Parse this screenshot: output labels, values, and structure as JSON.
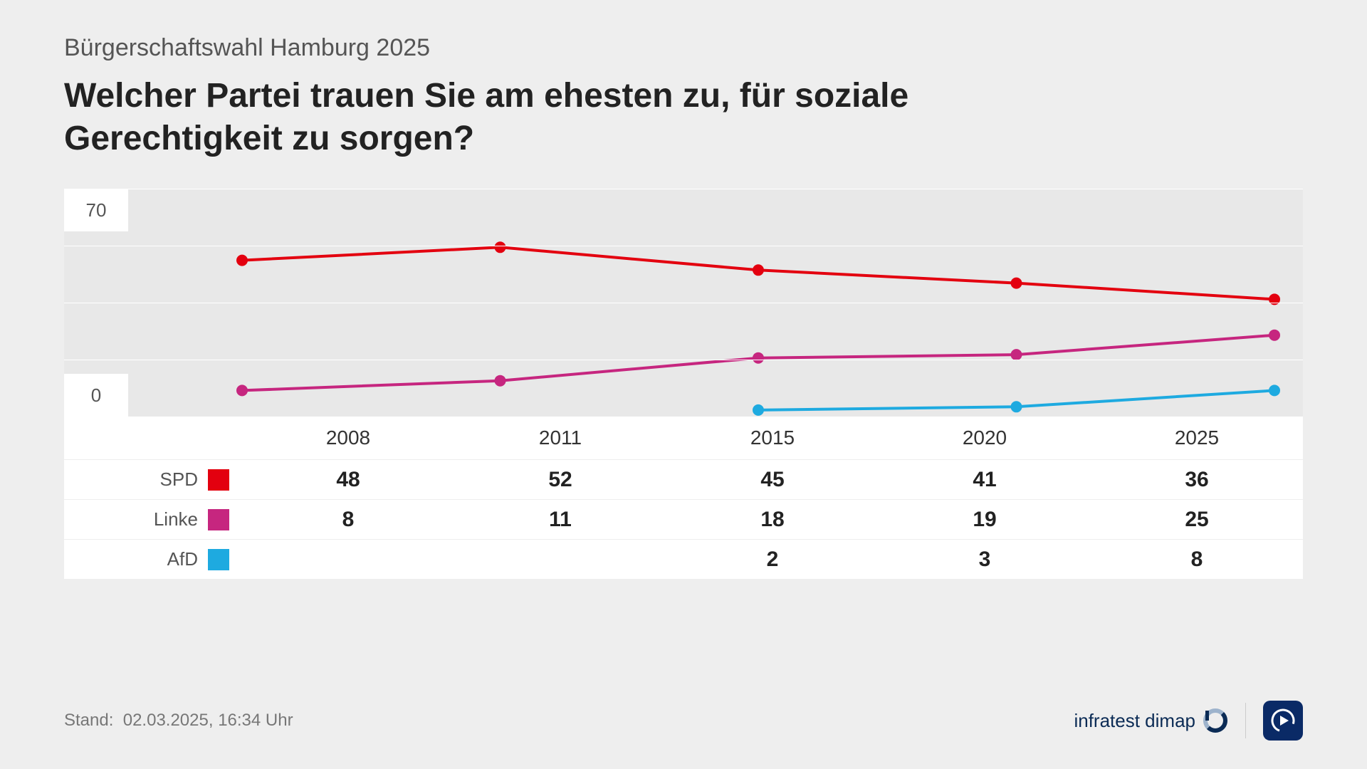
{
  "subtitle": "Bürgerschaftswahl Hamburg 2025",
  "title": "Welcher Partei trauen Sie am ehesten zu, für soziale Gerechtigkeit zu sorgen?",
  "chart": {
    "type": "line",
    "years": [
      "2008",
      "2011",
      "2015",
      "2020",
      "2025"
    ],
    "ylim": [
      0,
      70
    ],
    "yticks": [
      0,
      70
    ],
    "background_color": "#e8e8e8",
    "grid_color": "#ffffff",
    "gridline_step": 17.5,
    "line_width": 4,
    "marker_radius": 8,
    "series": [
      {
        "name": "SPD",
        "color": "#e3000f",
        "values": [
          48,
          52,
          45,
          41,
          36
        ]
      },
      {
        "name": "Linke",
        "color": "#c6267f",
        "values": [
          8,
          11,
          18,
          19,
          25
        ]
      },
      {
        "name": "AfD",
        "color": "#1eaae0",
        "values": [
          null,
          null,
          2,
          3,
          8
        ]
      }
    ]
  },
  "footer": {
    "stand_label": "Stand:",
    "stand_value": "02.03.2025, 16:34 Uhr",
    "source": "infratest dimap"
  },
  "colors": {
    "page_bg": "#eeeeee",
    "title": "#222222",
    "subtitle": "#555555",
    "table_bg": "#ffffff",
    "logo_blue": "#0a2a66",
    "infratest_blue": "#0b2b55"
  },
  "typography": {
    "subtitle_fontsize": 34,
    "title_fontsize": 48,
    "year_fontsize": 28,
    "value_fontsize": 30,
    "legend_fontsize": 26
  }
}
